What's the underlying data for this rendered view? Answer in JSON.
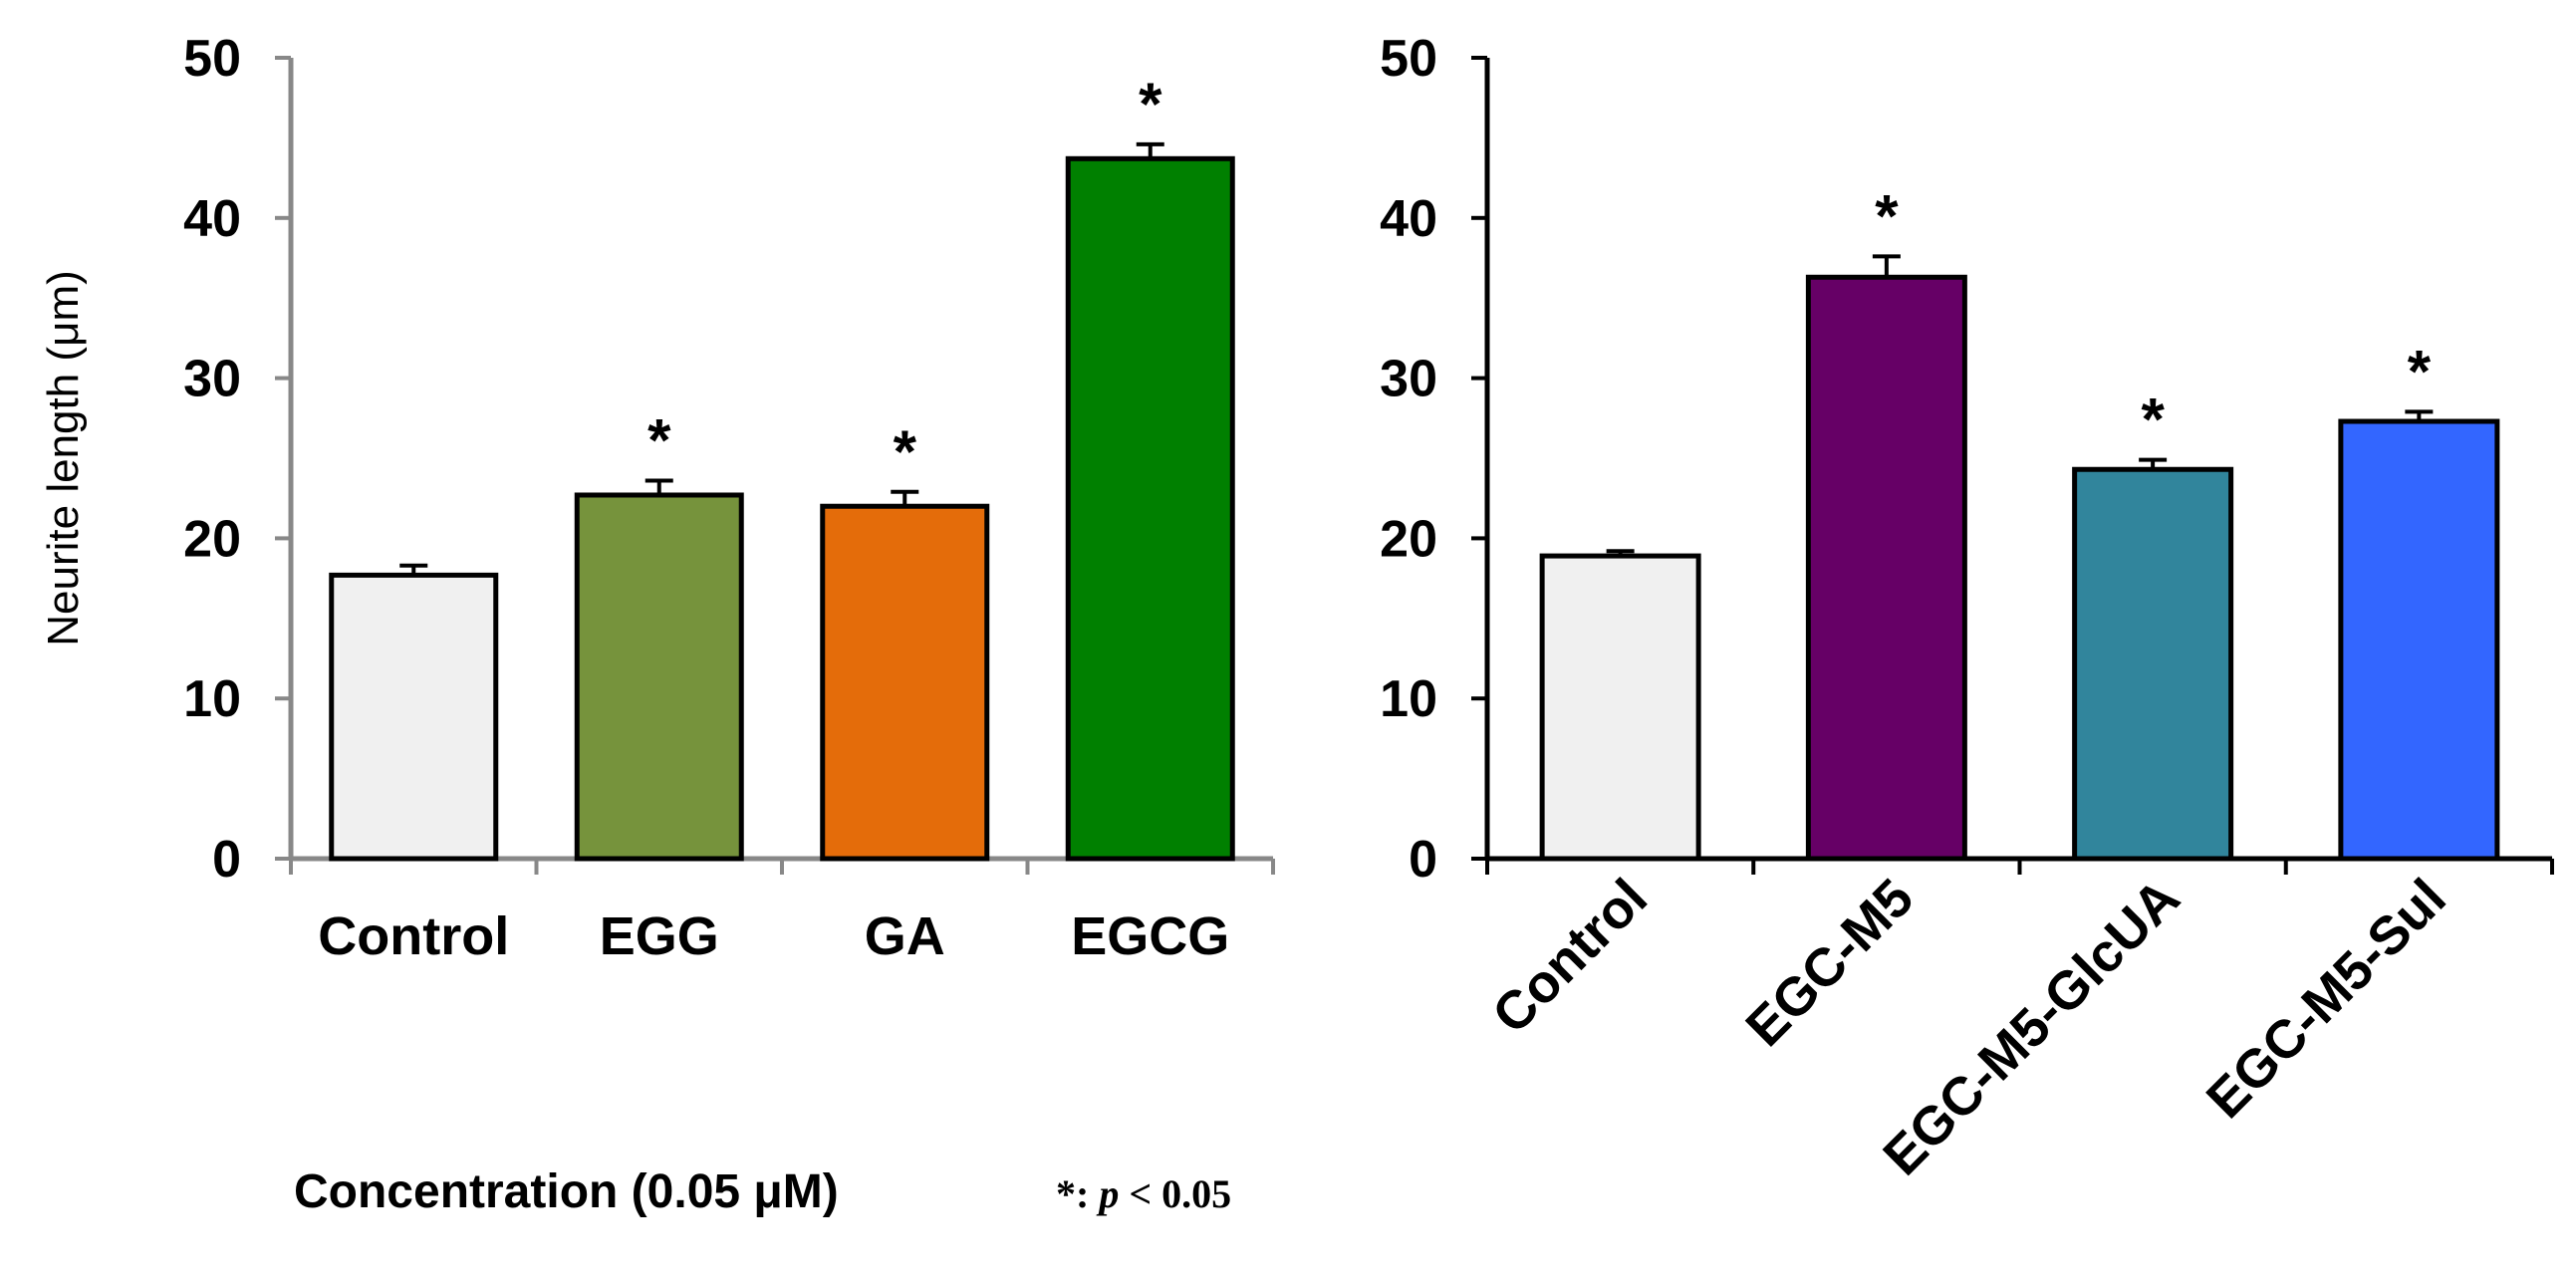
{
  "chart_data": [
    {
      "type": "bar",
      "ylabel": "Neurite length (μm)",
      "ylim": [
        0,
        50
      ],
      "yticks": [
        "0",
        "10",
        "20",
        "30",
        "40",
        "50"
      ],
      "categories": [
        "Control",
        "EGG",
        "GA",
        "EGCG"
      ],
      "values": [
        17.7,
        22.7,
        22.0,
        43.7
      ],
      "errors": [
        0.6,
        0.9,
        0.9,
        0.9
      ],
      "significance": [
        "",
        "*",
        "*",
        "*"
      ],
      "colors": [
        "#f0f0f0",
        "#76933c",
        "#e46c0a",
        "#008000"
      ],
      "xlabel": "Concentration (0.05 μM)",
      "note": "*: ",
      "note_p": "p",
      "note_rest": " < 0.05"
    },
    {
      "type": "bar",
      "ylabel": "",
      "ylim": [
        0,
        50
      ],
      "yticks": [
        "0",
        "10",
        "20",
        "30",
        "40",
        "50"
      ],
      "categories": [
        "Control",
        "EGC-M5",
        "EGC-M5-GlcUA",
        "EGC-M5-Sul"
      ],
      "values": [
        18.9,
        36.3,
        24.3,
        27.3
      ],
      "errors": [
        0.3,
        1.3,
        0.6,
        0.6
      ],
      "significance": [
        "",
        "*",
        "*",
        "*"
      ],
      "colors": [
        "#f0f0f0",
        "#660066",
        "#31859c",
        "#3366ff"
      ]
    }
  ]
}
